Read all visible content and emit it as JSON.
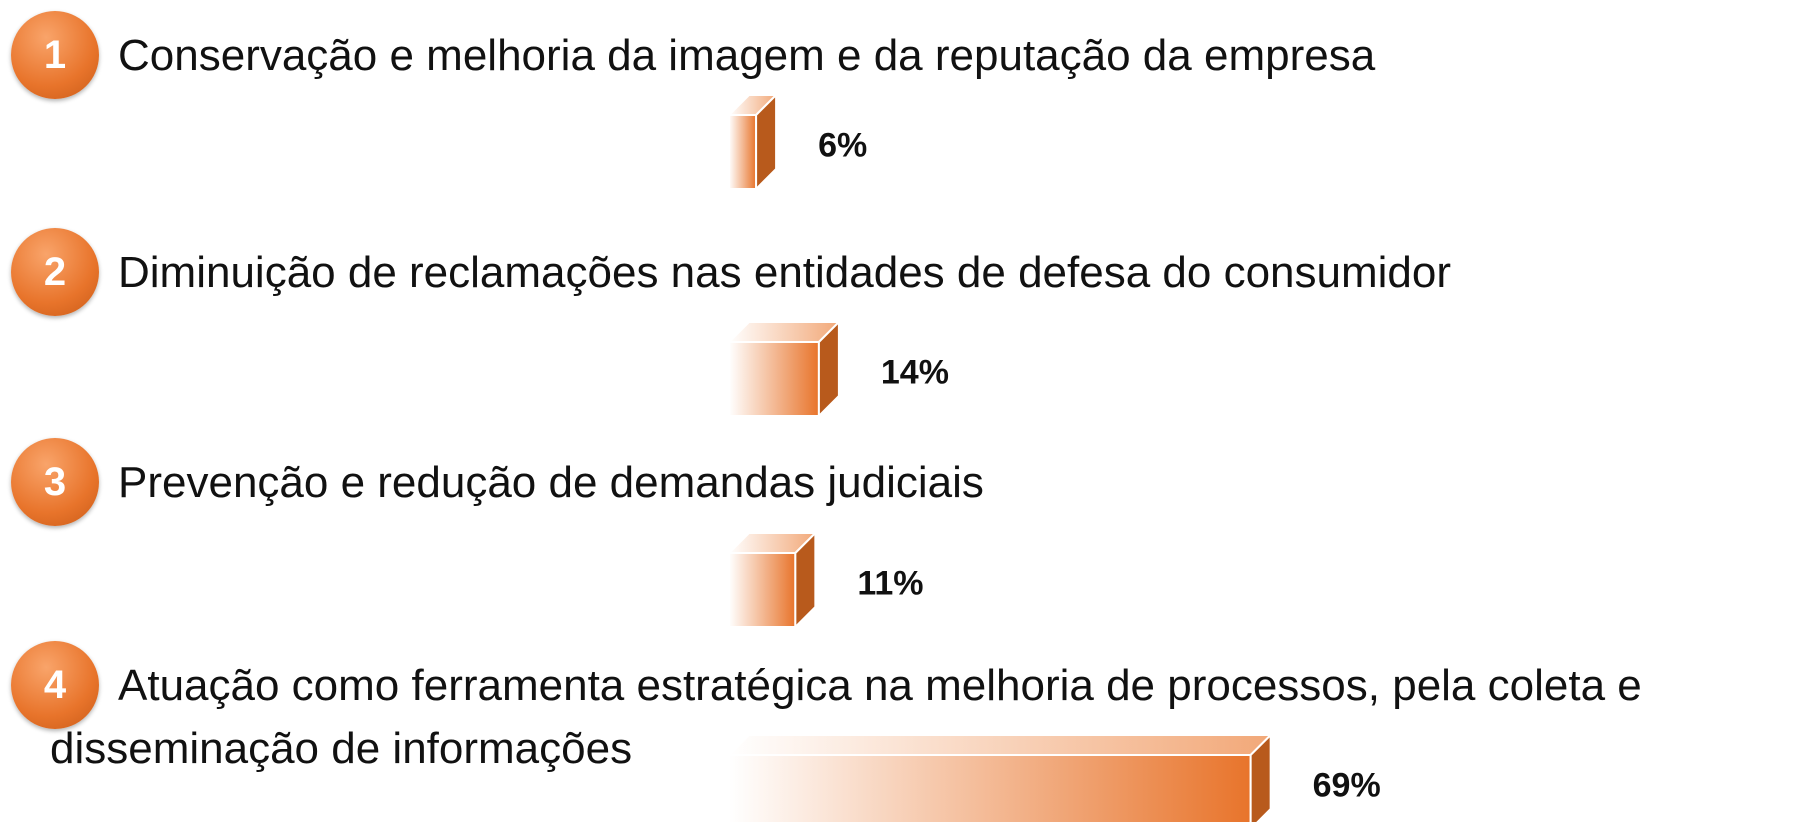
{
  "chart_data": {
    "type": "bar",
    "orientation": "horizontal",
    "markers": [
      "1",
      "2",
      "3",
      "4"
    ],
    "categories": [
      "Conservação e melhoria da imagem e da reputação da empresa",
      "Diminuição de reclamações nas entidades de defesa do consumidor",
      "Prevenção e redução de demandas judiciais",
      "Atuação como ferramenta estratégica na melhoria de processos, pela coleta e disseminação de informações"
    ],
    "values": [
      6,
      14,
      11,
      69
    ],
    "value_labels": [
      "6%",
      "14%",
      "11%",
      "69%"
    ],
    "color": "#e8742b"
  }
}
